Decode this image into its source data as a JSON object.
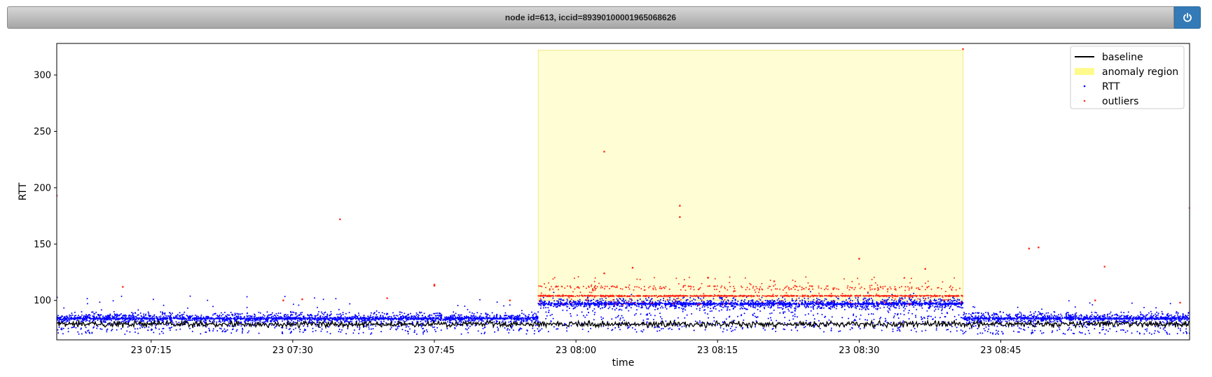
{
  "header": {
    "title": "node id=613, iccid=89390100001965068626",
    "power_icon": "power-icon"
  },
  "colors": {
    "baseline": "#000000",
    "anomaly_region": "#fffa8c",
    "rtt": "#0000ff",
    "outliers": "#ff2a1a",
    "button": "#337ab7"
  },
  "chart_data": {
    "type": "scatter",
    "xlabel": "time",
    "ylabel": "RTT",
    "x_range": [
      "23 07:05",
      "23 09:05"
    ],
    "ylim": [
      65,
      328
    ],
    "x_ticks": [
      "23 07:15",
      "23 07:30",
      "23 07:45",
      "23 08:00",
      "23 08:15",
      "23 08:30",
      "23 08:45"
    ],
    "y_ticks": [
      100,
      150,
      200,
      250,
      300
    ],
    "grid": false,
    "legend_position": "top-right",
    "legend": [
      "baseline",
      "anomaly region",
      "RTT",
      "outliers"
    ],
    "anomaly_region": {
      "x_start": "23 07:56",
      "x_end": "23 08:41",
      "y_start": 100,
      "y_end": 322
    },
    "series": [
      {
        "name": "baseline",
        "kind": "line",
        "description_values": {
          "level": 79,
          "min": 73,
          "max": 86
        }
      },
      {
        "name": "RTT",
        "kind": "scatter",
        "segments": [
          {
            "from": "23 07:05",
            "to": "23 07:56",
            "typical": 84,
            "spread": [
              70,
              104
            ]
          },
          {
            "from": "23 07:56",
            "to": "23 08:41",
            "typical": 97,
            "spread": [
              72,
              108
            ]
          },
          {
            "from": "23 08:41",
            "to": "23 09:05",
            "typical": 84,
            "spread": [
              70,
              100
            ]
          }
        ]
      },
      {
        "name": "outliers",
        "kind": "scatter",
        "points": [
          {
            "x": "23 07:05",
            "y": 193
          },
          {
            "x": "23 07:12",
            "y": 112
          },
          {
            "x": "23 07:35",
            "y": 172
          },
          {
            "x": "23 07:45",
            "y": 113
          },
          {
            "x": "23 07:45",
            "y": 114
          },
          {
            "x": "23 07:40",
            "y": 102
          },
          {
            "x": "23 07:29",
            "y": 100
          },
          {
            "x": "23 07:31",
            "y": 101
          },
          {
            "x": "23 07:53",
            "y": 100
          },
          {
            "x": "23 08:03",
            "y": 232
          },
          {
            "x": "23 08:11",
            "y": 184
          },
          {
            "x": "23 08:11",
            "y": 174
          },
          {
            "x": "23 08:03",
            "y": 124
          },
          {
            "x": "23 08:06",
            "y": 129
          },
          {
            "x": "23 08:14",
            "y": 120
          },
          {
            "x": "23 08:21",
            "y": 117
          },
          {
            "x": "23 08:30",
            "y": 137
          },
          {
            "x": "23 08:37",
            "y": 128
          },
          {
            "x": "23 08:41",
            "y": 323
          },
          {
            "x": "23 08:48",
            "y": 146
          },
          {
            "x": "23 08:49",
            "y": 147
          },
          {
            "x": "23 08:56",
            "y": 130
          },
          {
            "x": "23 08:55",
            "y": 100
          },
          {
            "x": "23 09:05",
            "y": 182
          },
          {
            "x": "23 09:04",
            "y": 98
          }
        ],
        "band": {
          "from": "23 07:56",
          "to": "23 08:41",
          "typical": 104,
          "spread": [
            96,
            121
          ]
        }
      }
    ]
  }
}
